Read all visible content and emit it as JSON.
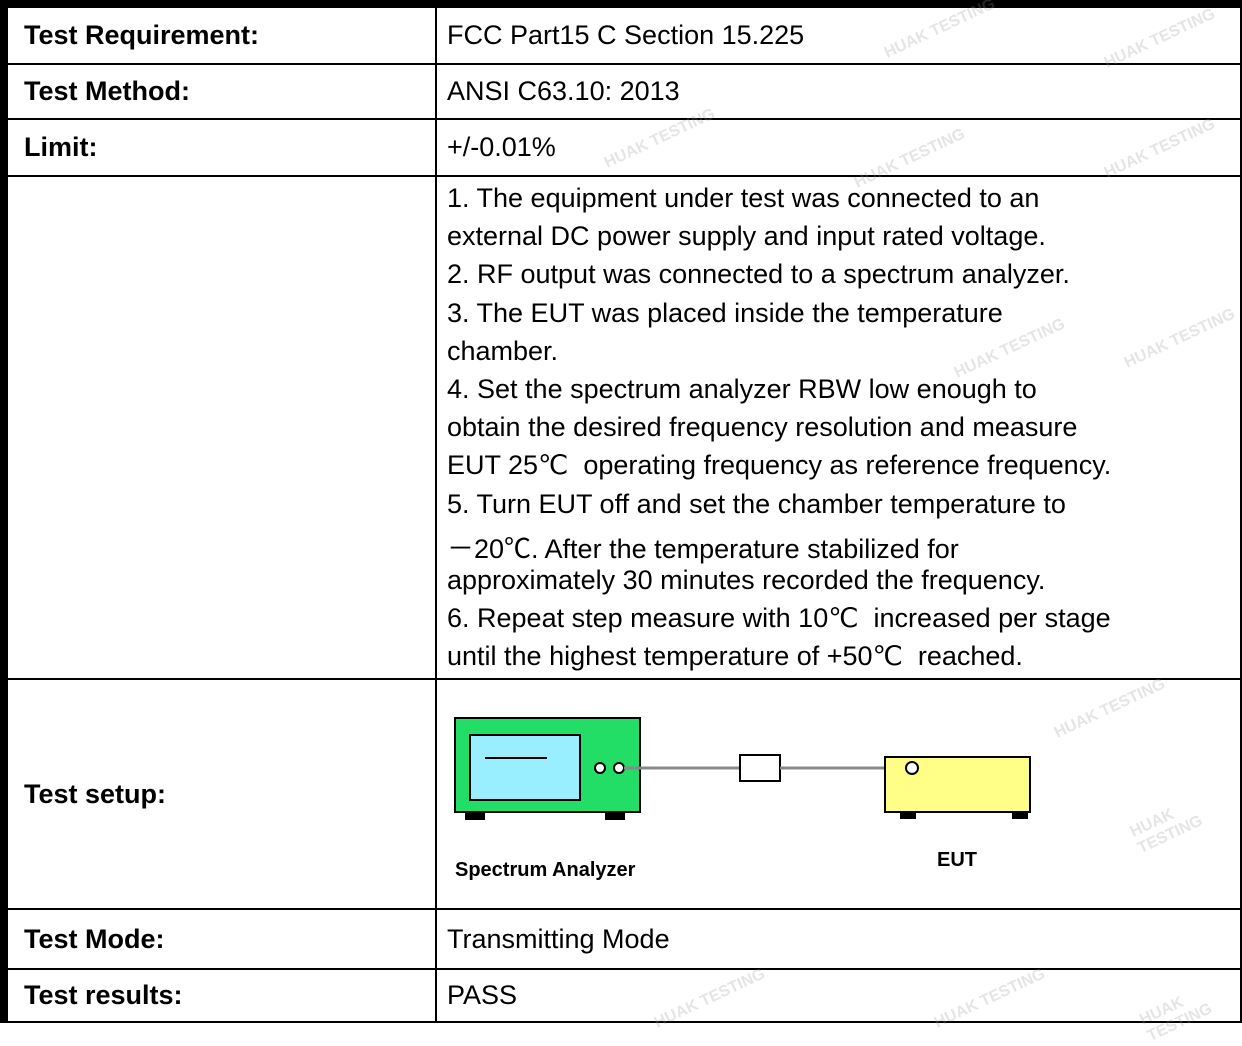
{
  "table": {
    "rows": [
      {
        "label": "Test Requirement:",
        "value": "FCC Part15 C Section 15.225"
      },
      {
        "label": "Test Method:",
        "value": "ANSI C63.10: 2013"
      },
      {
        "label": "Limit:",
        "value": "+/-0.01%"
      },
      {
        "lines": [
          "1. The equipment under test was connected to an",
          "external DC power supply and input rated voltage.",
          "2. RF output was connected to a spectrum analyzer.",
          "3. The EUT was placed inside the temperature",
          "chamber.",
          "4. Set the spectrum analyzer RBW low enough to",
          "obtain the desired frequency resolution and measure",
          "EUT 25℃  operating frequency as reference frequency.",
          "5. Turn EUT off and set the chamber temperature to",
          "－20℃. After the temperature stabilized for",
          "approximately 30 minutes recorded the frequency.",
          "6. Repeat step measure with 10℃  increased per stage",
          "until the highest temperature of +50℃  reached."
        ]
      },
      {
        "label": "Test setup:",
        "analyzer": "Spectrum Analyzer",
        "eut": "EUT"
      },
      {
        "label": "Test Mode:",
        "value": "Transmitting Mode"
      },
      {
        "label": "Test results:",
        "value": "PASS"
      }
    ]
  },
  "watermark": "HUAK TESTING"
}
